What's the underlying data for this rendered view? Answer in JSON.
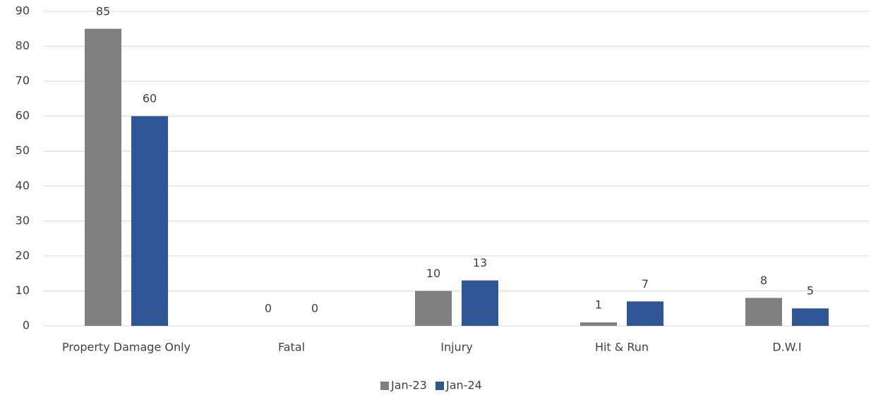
{
  "chart_data": {
    "type": "bar",
    "categories": [
      "Property Damage Only",
      "Fatal",
      "Injury",
      "Hit & Run",
      "D.W.I"
    ],
    "series": [
      {
        "name": "Jan-23",
        "color": "#808080",
        "values": [
          85,
          0,
          10,
          1,
          8
        ]
      },
      {
        "name": "Jan-24",
        "color": "#2f5597",
        "values": [
          60,
          0,
          13,
          7,
          5
        ]
      }
    ],
    "ylim": [
      0,
      90
    ],
    "yticks": [
      0,
      10,
      20,
      30,
      40,
      50,
      60,
      70,
      80,
      90
    ],
    "grid": true,
    "legend": "bottom",
    "data_labels": true
  }
}
